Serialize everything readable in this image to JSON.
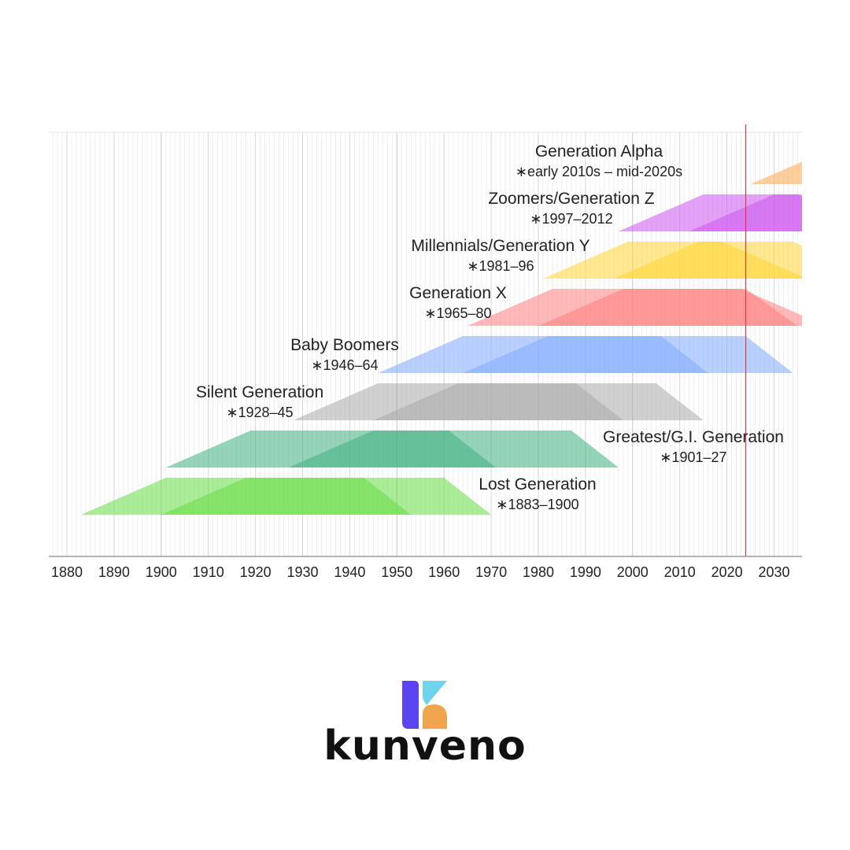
{
  "chart_data": {
    "type": "timeline",
    "title": "",
    "xlabel": "",
    "ylabel": "",
    "xlim": [
      1876,
      2036
    ],
    "x_ticks": [
      "1880",
      "1890",
      "1900",
      "1910",
      "1920",
      "1930",
      "1940",
      "1950",
      "1960",
      "1970",
      "1980",
      "1990",
      "2000",
      "2010",
      "2020",
      "2030"
    ],
    "current_year_marker": 2024,
    "marker_color": "#e53935",
    "generations": [
      {
        "name": "Generation Alpha",
        "years": "∗early 2010s – mid-2020s",
        "birth_start": 2012,
        "birth_end": 2025,
        "color": "#ffa64d",
        "outer": [
          2025,
          2043,
          2063,
          2081
        ],
        "inner": [
          2037,
          2055,
          2075,
          2093
        ]
      },
      {
        "name": "Zoomers/Generation Z",
        "years": "∗1997–2012",
        "birth_start": 1997,
        "birth_end": 2012,
        "color": "#cc55ee",
        "outer": [
          1997,
          2015,
          2035,
          2053
        ],
        "inner": [
          2012,
          2030,
          2050,
          2068
        ]
      },
      {
        "name": "Millennials/Generation Y",
        "years": "∗1981–96",
        "birth_start": 1981,
        "birth_end": 1996,
        "color": "#ffd633",
        "outer": [
          1981,
          1999,
          2019,
          2037
        ],
        "inner": [
          1996,
          2014,
          2034,
          2052
        ]
      },
      {
        "name": "Generation X",
        "years": "∗1965–80",
        "birth_start": 1965,
        "birth_end": 1980,
        "color": "#ff8080",
        "outer": [
          1965,
          1983,
          2023,
          2041
        ],
        "inner": [
          1980,
          1998,
          2024,
          2035
        ]
      },
      {
        "name": "Baby Boomers",
        "years": "∗1946–64",
        "birth_start": 1946,
        "birth_end": 1964,
        "color": "#80aaff",
        "outer": [
          1946,
          1964,
          2024,
          2034
        ],
        "inner": [
          1964,
          1982,
          2006,
          2016
        ]
      },
      {
        "name": "Silent Generation",
        "years": "∗1928–45",
        "birth_start": 1928,
        "birth_end": 1945,
        "color": "#aaaaaa",
        "outer": [
          1928,
          1946,
          2005,
          2015
        ],
        "inner": [
          1945,
          1963,
          1988,
          1998
        ]
      },
      {
        "name": "Greatest/G.I. Generation",
        "years": "∗1901–27",
        "birth_start": 1901,
        "birth_end": 1927,
        "color": "#40b080",
        "outer": [
          1901,
          1919,
          1987,
          1997
        ],
        "inner": [
          1927,
          1945,
          1961,
          1971
        ]
      },
      {
        "name": "Lost Generation",
        "years": "∗1883–1900",
        "birth_start": 1883,
        "birth_end": 1900,
        "color": "#66dd44",
        "outer": [
          1883,
          1901,
          1960,
          1970
        ],
        "inner": [
          1900,
          1918,
          1943,
          1953
        ]
      }
    ]
  },
  "brand": {
    "name": "kunveno"
  }
}
